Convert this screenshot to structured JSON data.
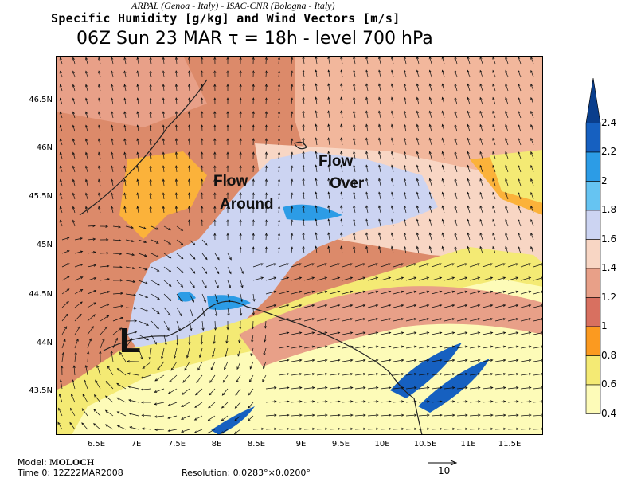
{
  "header": {
    "credits": "ARPAL (Genoa - Italy)  -  ISAC-CNR (Bologna - Italy)",
    "title": "Specific Humidity [g/kg] and Wind Vectors [m/s]",
    "subtitle": "06Z Sun 23 MAR  τ = 18h  -  level 700 hPa"
  },
  "map": {
    "latitude_labels": [
      "46.5N",
      "46N",
      "45.5N",
      "45N",
      "44.5N",
      "44N",
      "43.5N"
    ],
    "longitude_labels": [
      "6.5E",
      "7E",
      "7.5E",
      "8E",
      "8.5E",
      "9E",
      "9.5E",
      "10E",
      "10.5E",
      "11E",
      "11.5E"
    ],
    "annotations": {
      "flow_around_line1": "Flow",
      "flow_around_line2": "Around",
      "flow_over_line1": "Flow",
      "flow_over_line2": "Over",
      "low_pressure": "L"
    },
    "colors": {
      "vlow": "#fdfbb8",
      "low": "#f4ea74",
      "orange": "#fbb23a",
      "mid": "#dc8a6a",
      "salmon": "#f2b79c",
      "pale": "#f8d6c4",
      "lav": "#ccd4f2",
      "cyan": "#2c9ce6",
      "blue": "#1660c0",
      "dblue": "#0a3e8c"
    }
  },
  "colorbar": {
    "labels": [
      "2.4",
      "2.2",
      "2",
      "1.8",
      "1.6",
      "1.4",
      "1.2",
      "1",
      "0.8",
      "0.6",
      "0.4"
    ],
    "colors": [
      "#0a3e8c",
      "#1660c0",
      "#2c9ce6",
      "#66c4f2",
      "#ccd4f2",
      "#f8d6c4",
      "#e8a088",
      "#d87060",
      "#fb9a20",
      "#f4ea74",
      "#fdfbb8"
    ]
  },
  "footer": {
    "model_label": "Model:",
    "model_name": "MOLOCH",
    "time_zero": "Time 0: 12Z22MAR2008",
    "resolution": "Resolution: 0.0283°×0.0200°",
    "reference_vector_label": "10"
  }
}
